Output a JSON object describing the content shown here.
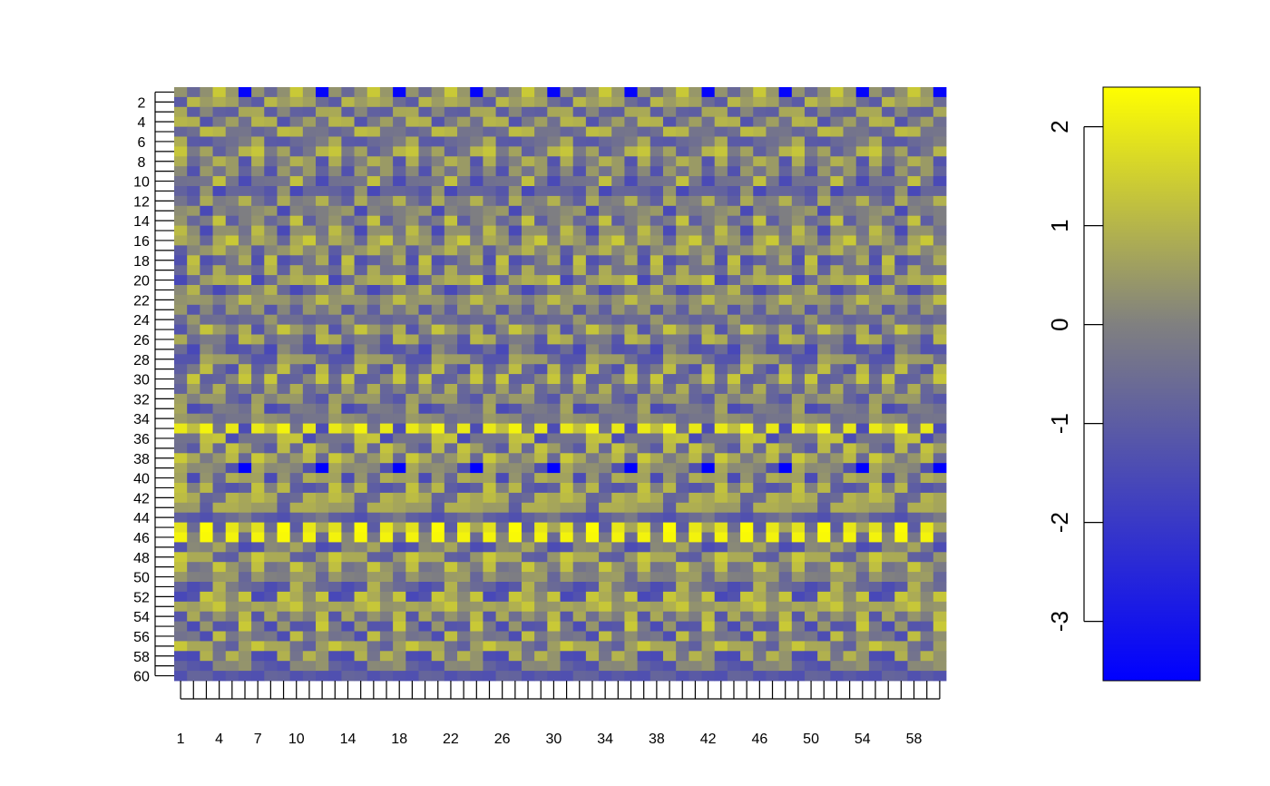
{
  "chart_data": {
    "type": "heatmap",
    "rows": 60,
    "cols": 60,
    "x_tick_labels": [
      "1",
      "4",
      "7",
      "10",
      "14",
      "18",
      "22",
      "26",
      "30",
      "34",
      "38",
      "42",
      "46",
      "50",
      "54",
      "58"
    ],
    "x_tick_values": [
      1,
      4,
      7,
      10,
      14,
      18,
      22,
      26,
      30,
      34,
      38,
      42,
      46,
      50,
      54,
      58
    ],
    "y_tick_labels": [
      "2",
      "4",
      "6",
      "8",
      "10",
      "12",
      "14",
      "16",
      "18",
      "20",
      "22",
      "24",
      "26",
      "28",
      "30",
      "32",
      "34",
      "36",
      "38",
      "40",
      "42",
      "44",
      "46",
      "48",
      "50",
      "52",
      "54",
      "56",
      "58",
      "60"
    ],
    "y_tick_values": [
      2,
      4,
      6,
      8,
      10,
      12,
      14,
      16,
      18,
      20,
      22,
      24,
      26,
      28,
      30,
      32,
      34,
      36,
      38,
      40,
      42,
      44,
      46,
      48,
      50,
      52,
      54,
      56,
      58,
      60
    ],
    "colorbar": {
      "range": [
        -3.6,
        2.4
      ],
      "tick_values": [
        -3,
        -2,
        -1,
        0,
        1,
        2
      ],
      "tick_labels": [
        "-3",
        "-2",
        "-1",
        "0",
        "1",
        "2"
      ],
      "colors": [
        "#0000ff",
        "#808080",
        "#ffff00"
      ]
    },
    "period": 6,
    "strong_low_cells": [
      {
        "row": 1,
        "col_offset": 6,
        "value": -3.5
      },
      {
        "row": 39,
        "col_offset": 6,
        "value": -3.6
      }
    ],
    "strong_high_rows": [
      35,
      45,
      46
    ],
    "title": "",
    "xlabel": "",
    "ylabel": ""
  }
}
